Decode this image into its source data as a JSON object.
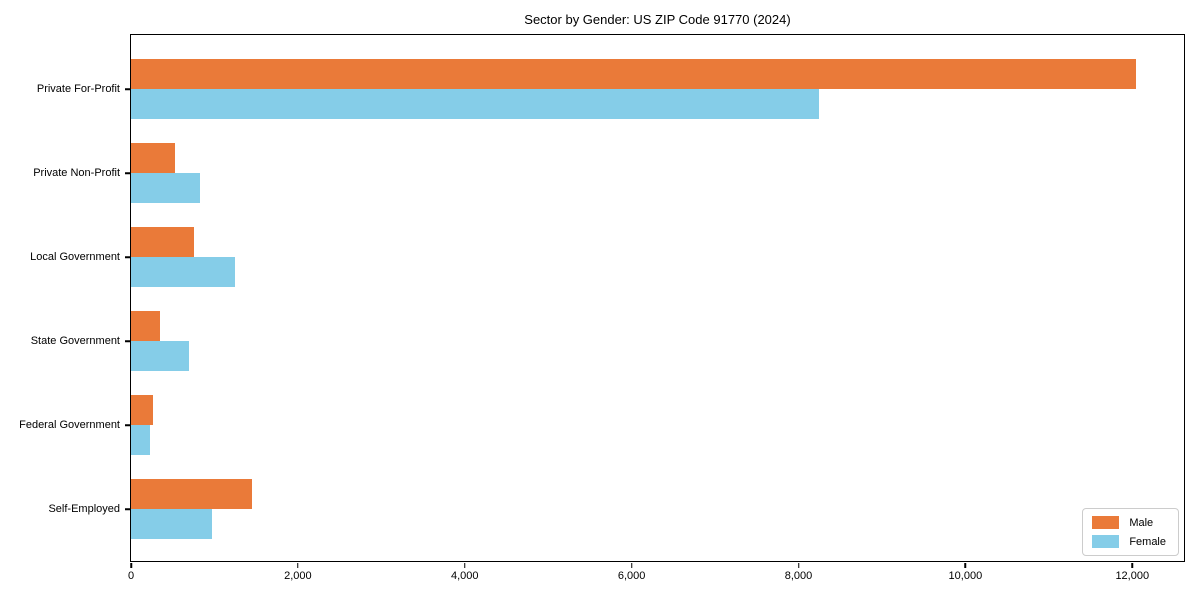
{
  "chart_data": {
    "type": "bar",
    "orientation": "horizontal",
    "title": "Sector by Gender: US ZIP Code 91770 (2024)",
    "categories": [
      "Private For-Profit",
      "Private Non-Profit",
      "Local Government",
      "State Government",
      "Federal Government",
      "Self-Employed"
    ],
    "series": [
      {
        "name": "Male",
        "color": "#EA7A39",
        "values": [
          12050,
          525,
          755,
          350,
          265,
          1450
        ]
      },
      {
        "name": "Female",
        "color": "#85CDE8",
        "values": [
          8250,
          825,
          1245,
          695,
          225,
          970
        ]
      }
    ],
    "xlim": [
      0,
      12620
    ],
    "xticks": [
      0,
      2000,
      4000,
      6000,
      8000,
      10000,
      12000
    ],
    "xtick_labels": [
      "0",
      "2,000",
      "4,000",
      "6,000",
      "8,000",
      "10,000",
      "12,000"
    ],
    "grid": false,
    "legend_position": "lower right"
  }
}
